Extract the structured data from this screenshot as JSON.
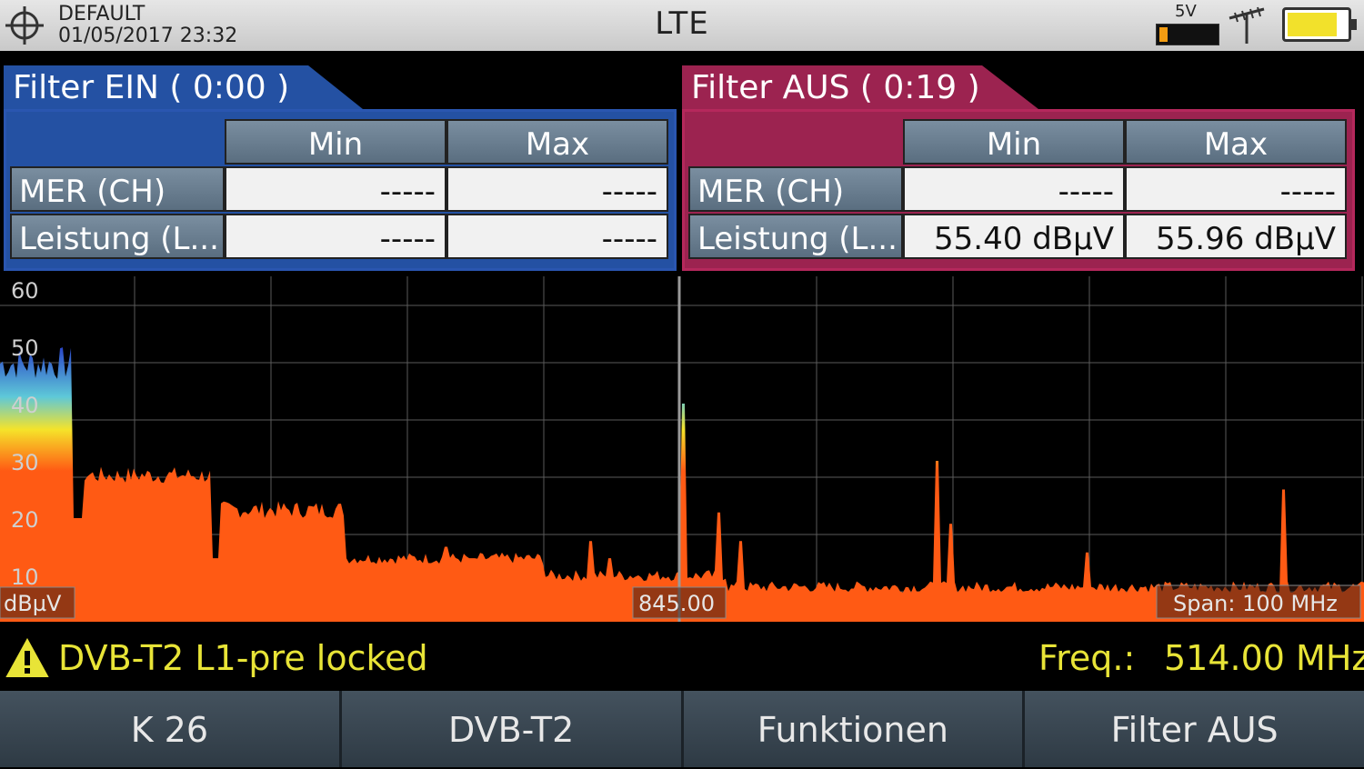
{
  "topbar": {
    "profile": "DEFAULT",
    "datetime": "01/05/2017 23:32",
    "title": "LTE",
    "voltage": "5V",
    "battery_level": 0.85,
    "ext_power_level": 0.15
  },
  "filter_on": {
    "title": "Filter EIN ( 0:00 )",
    "col_min": "Min",
    "col_max": "Max",
    "rows": [
      {
        "label": "MER (CH)",
        "min": "-----",
        "max": "-----"
      },
      {
        "label": "Leistung (L...",
        "min": "-----",
        "max": "-----"
      }
    ],
    "color": "#2451a3"
  },
  "filter_off": {
    "title": "Filter AUS ( 0:19 )",
    "col_min": "Min",
    "col_max": "Max",
    "rows": [
      {
        "label": "MER (CH)",
        "min": "-----",
        "max": "-----"
      },
      {
        "label": "Leistung (L...",
        "min": "55.40 dBµV",
        "max": "55.96 dBµV"
      }
    ],
    "color": "#9c2350"
  },
  "spectrum": {
    "y_ticks": [
      "60",
      "50",
      "40",
      "30",
      "20",
      "10"
    ],
    "unit": "dBµV",
    "center_freq": "845.00",
    "span": "Span: 100 MHz"
  },
  "status": {
    "message": "DVB-T2 L1-pre locked",
    "freq_label": "Freq.:",
    "freq_value": "514.00 MHz"
  },
  "softkeys": [
    "K 26",
    "DVB-T2",
    "Funktionen",
    "Filter AUS"
  ]
}
